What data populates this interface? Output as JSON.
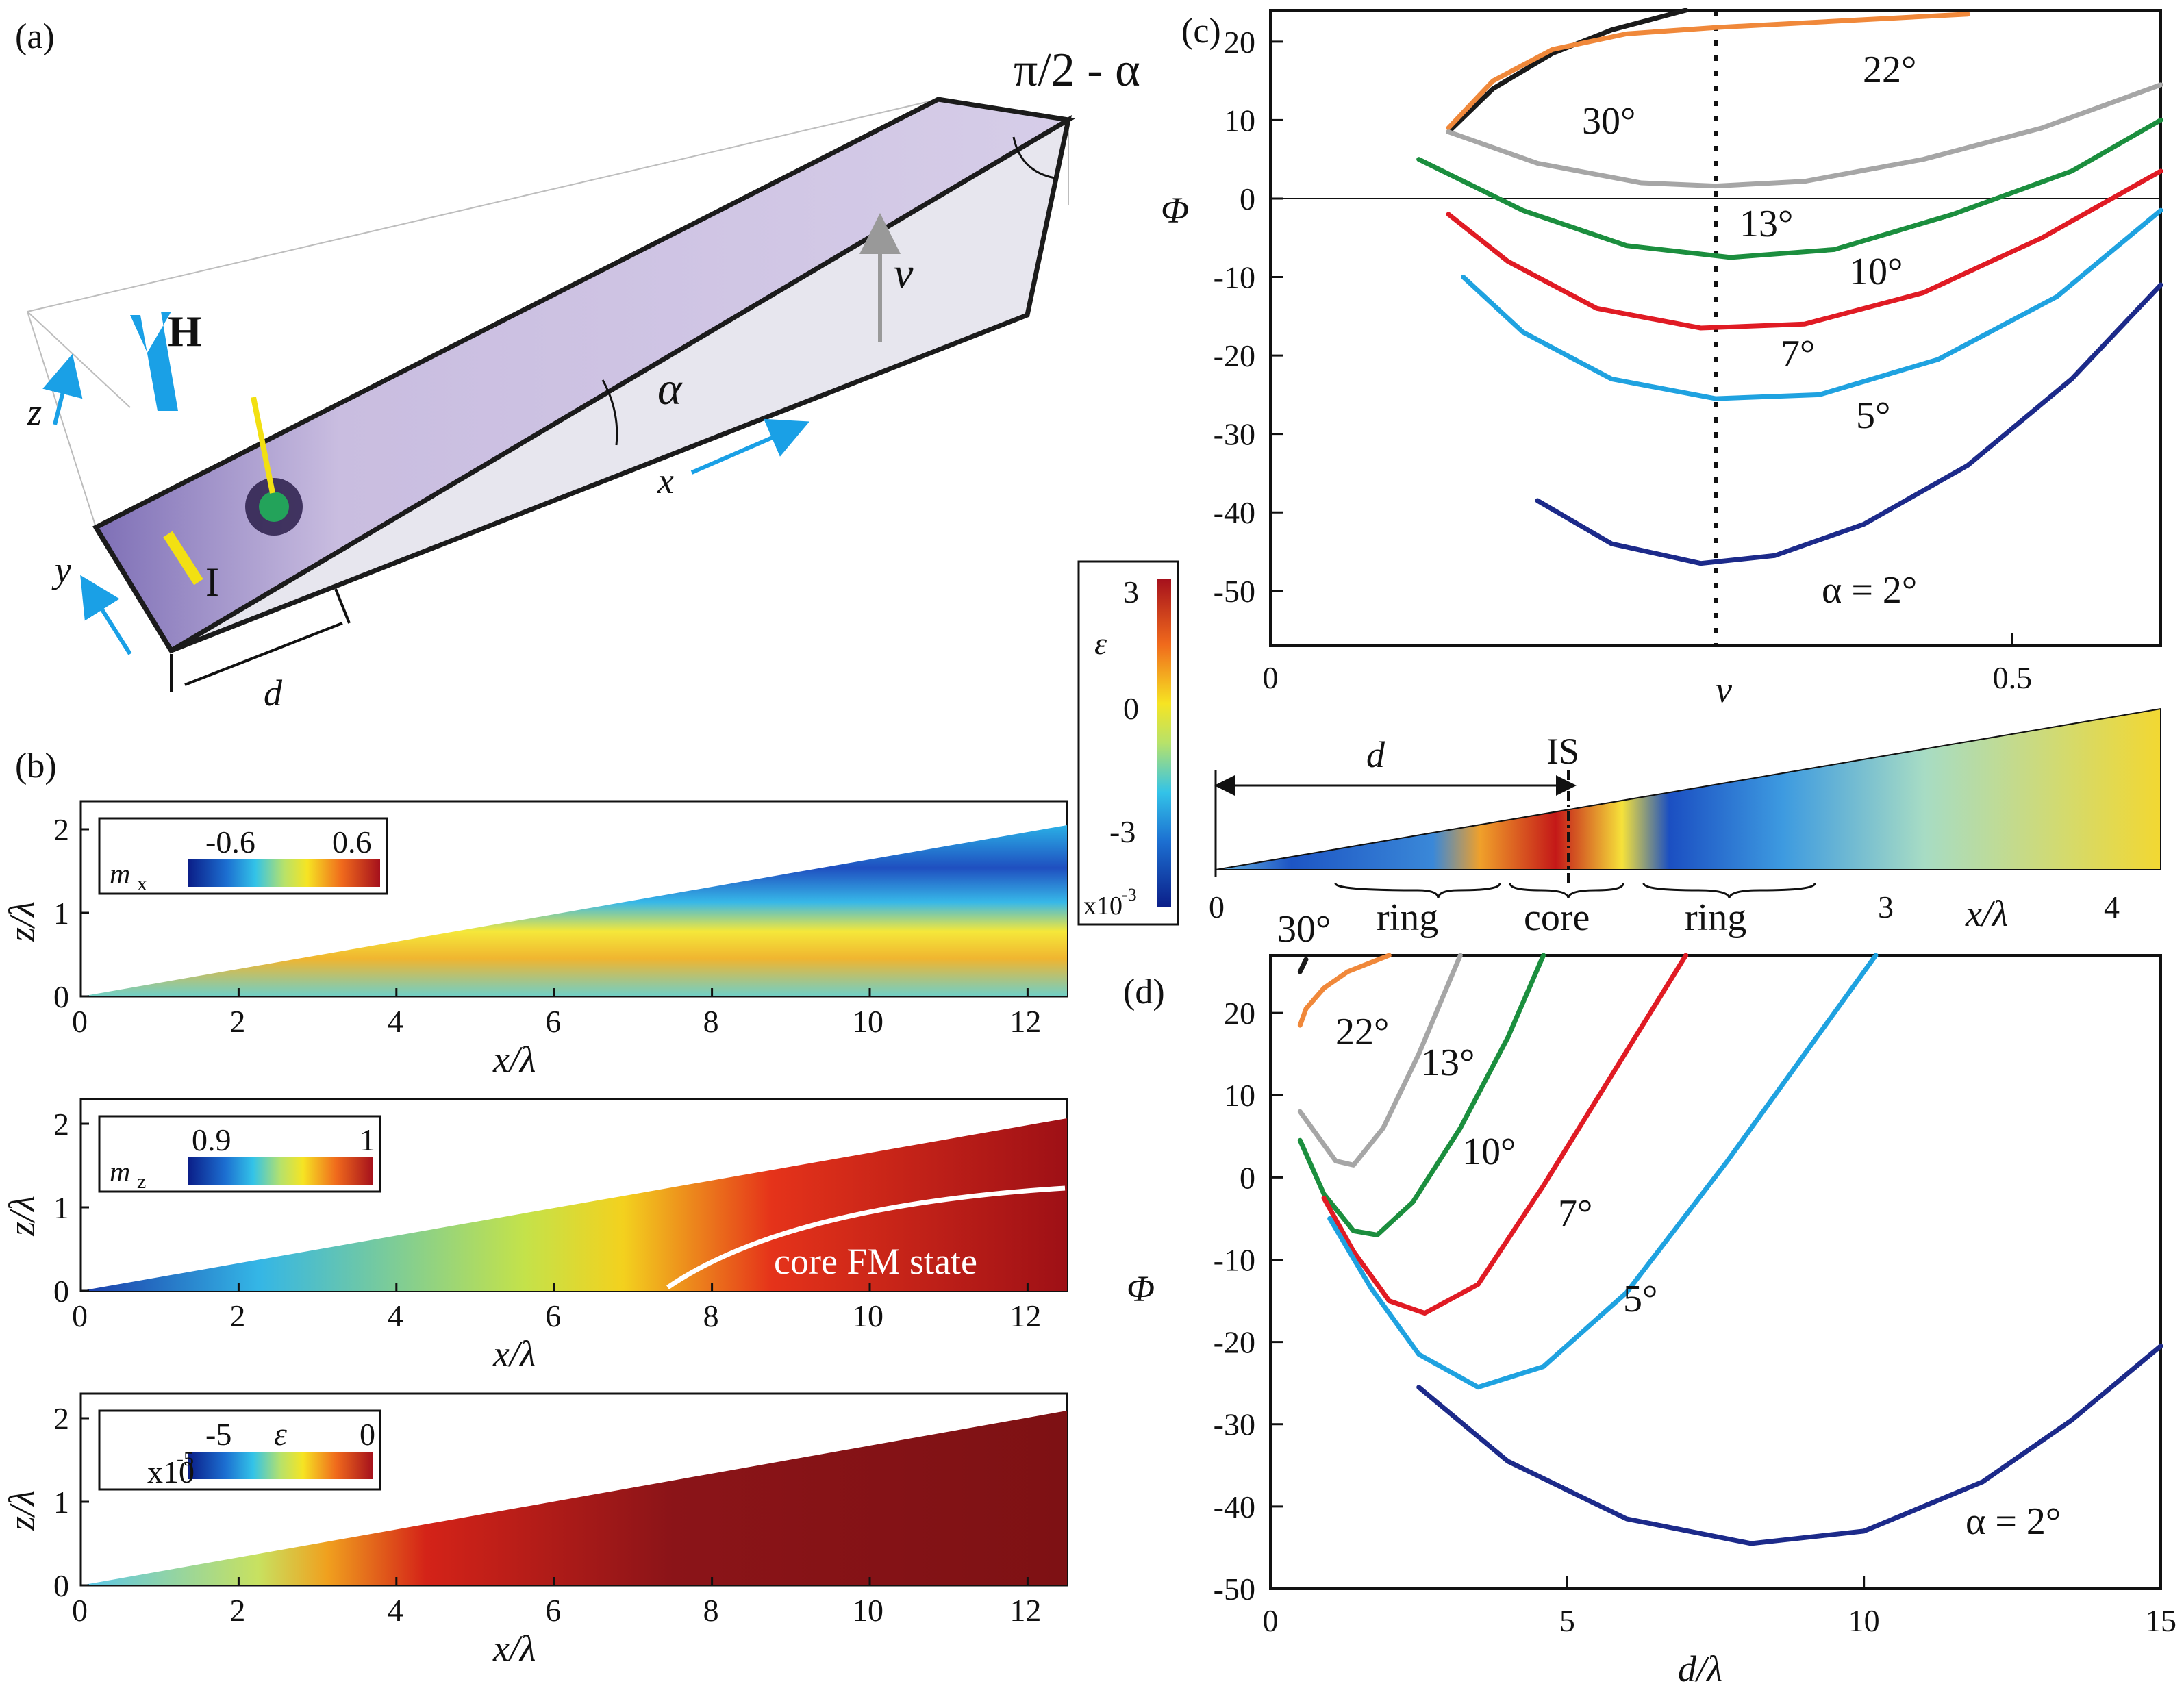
{
  "panels": {
    "a": {
      "label": "(a)",
      "angle_top": "π/2 - α",
      "H": "H",
      "I": "I",
      "nu": "ν",
      "alpha": "α",
      "x": "x",
      "y": "y",
      "z": "z",
      "d": "d"
    },
    "b": {
      "label": "(b)",
      "ylabel": "z/λ",
      "xlabel": "x/λ",
      "xticks": [
        "0",
        "2",
        "4",
        "6",
        "8",
        "10",
        "12"
      ],
      "yticks": [
        "0",
        "1",
        "2"
      ],
      "plots": [
        {
          "cb_label": "m",
          "cb_sub": "x",
          "cb_min": "-0.6",
          "cb_max": "0.6"
        },
        {
          "cb_label": "m",
          "cb_sub": "z",
          "cb_min": "0.9",
          "cb_max": "1",
          "annotation": "core FM state"
        },
        {
          "cb_label": "ε",
          "cb_min": "-5",
          "cb_max": "0",
          "cb_scale": "x10",
          "cb_exp": "-5"
        }
      ]
    },
    "mid": {
      "cb_label": "ε",
      "cb_max": "3",
      "cb_mid": "0",
      "cb_min": "-3",
      "cb_scale": "x10",
      "cb_exp": "-3",
      "d_label": "d",
      "IS_label": "IS",
      "ring_left": "ring",
      "core": "core",
      "ring_right": "ring",
      "xticks": [
        "0",
        "3",
        "4"
      ],
      "xlabel": "x/λ"
    },
    "c": {
      "label": "(c)",
      "xlabel": "ν"
    },
    "d": {
      "label": "(d)",
      "xlabel": "d/λ"
    }
  },
  "colors": {
    "c30": "#1a1a1a",
    "c22": "#f0883a",
    "c13": "#a6a6a6",
    "c10": "#1b8e3e",
    "c7": "#e01b24",
    "c5": "#1fa2e0",
    "c2": "#1c2a8a"
  },
  "chart_data": [
    {
      "type": "line",
      "panel": "c",
      "ylabel": "Φ",
      "xlabel": "ν",
      "xlim": [
        0,
        0.6
      ],
      "ylim": [
        -57,
        24
      ],
      "xticks": [
        0,
        0.5
      ],
      "xtick_labels": [
        "0",
        "0.5"
      ],
      "yticks": [
        -50,
        -40,
        -30,
        -20,
        -10,
        0,
        10,
        20
      ],
      "ytick_labels": [
        "-50",
        "-40",
        "-30",
        "-20",
        "-10",
        "0",
        "10",
        "20"
      ],
      "vline_at": 0.3,
      "vline_label": "ν",
      "series": [
        {
          "name": "30°",
          "color_key": "c30",
          "label": "30°",
          "x": [
            0.12,
            0.15,
            0.19,
            0.23,
            0.28
          ],
          "y": [
            8.5,
            14,
            18.5,
            21.5,
            24
          ]
        },
        {
          "name": "22°",
          "color_key": "c22",
          "label": "22°",
          "x": [
            0.12,
            0.15,
            0.19,
            0.24,
            0.3,
            0.36,
            0.42,
            0.47
          ],
          "y": [
            9,
            15,
            19,
            21,
            21.8,
            22.4,
            23,
            23.5
          ]
        },
        {
          "name": "13°",
          "color_key": "c13",
          "label": "13°",
          "x": [
            0.12,
            0.18,
            0.25,
            0.3,
            0.36,
            0.44,
            0.52,
            0.6
          ],
          "y": [
            8.5,
            4.5,
            2,
            1.6,
            2.2,
            5,
            9,
            14.5
          ]
        },
        {
          "name": "10°",
          "color_key": "c10",
          "label": "10°",
          "x": [
            0.1,
            0.17,
            0.24,
            0.31,
            0.38,
            0.46,
            0.54,
            0.6
          ],
          "y": [
            5,
            -1.5,
            -6,
            -7.5,
            -6.5,
            -2,
            3.5,
            10
          ]
        },
        {
          "name": "7°",
          "color_key": "c7",
          "label": "7°",
          "x": [
            0.12,
            0.16,
            0.22,
            0.29,
            0.36,
            0.44,
            0.52,
            0.6
          ],
          "y": [
            -2,
            -8,
            -14,
            -16.5,
            -16,
            -12,
            -5,
            3.5
          ]
        },
        {
          "name": "5°",
          "color_key": "c5",
          "label": "5°",
          "x": [
            0.13,
            0.17,
            0.23,
            0.3,
            0.37,
            0.45,
            0.53,
            0.6
          ],
          "y": [
            -10,
            -17,
            -23,
            -25.5,
            -25,
            -20.5,
            -12.5,
            -1.5
          ]
        },
        {
          "name": "α = 2°",
          "color_key": "c2",
          "label": "α = 2°",
          "x": [
            0.18,
            0.23,
            0.29,
            0.34,
            0.4,
            0.47,
            0.54,
            0.6
          ],
          "y": [
            -38.5,
            -44,
            -46.5,
            -45.5,
            -41.5,
            -34,
            -23,
            -11
          ]
        }
      ]
    },
    {
      "type": "line",
      "panel": "d",
      "ylabel": "Φ",
      "xlabel": "d/λ",
      "xlim": [
        0,
        15
      ],
      "ylim": [
        -50,
        27
      ],
      "xticks": [
        0,
        5,
        10,
        15
      ],
      "xtick_labels": [
        "0",
        "5",
        "10",
        "15"
      ],
      "yticks": [
        -50,
        -40,
        -30,
        -20,
        -10,
        0,
        10,
        20
      ],
      "ytick_labels": [
        "-50",
        "-40",
        "-30",
        "-20",
        "-10",
        "0",
        "10",
        "20"
      ],
      "series": [
        {
          "name": "30°",
          "color_key": "c30",
          "label": "30°",
          "x": [
            0.5,
            0.6
          ],
          "y": [
            25,
            26.5
          ]
        },
        {
          "name": "22°",
          "color_key": "c22",
          "label": "22°",
          "x": [
            0.5,
            0.6,
            0.9,
            1.3,
            2.0
          ],
          "y": [
            18.5,
            20.5,
            23,
            25,
            27
          ]
        },
        {
          "name": "13°",
          "color_key": "c13",
          "label": "13°",
          "x": [
            0.5,
            0.8,
            1.1,
            1.4,
            1.9,
            2.5,
            3.2
          ],
          "y": [
            8,
            5,
            2,
            1.5,
            6,
            15,
            27
          ]
        },
        {
          "name": "10°",
          "color_key": "c10",
          "label": "10°",
          "x": [
            0.5,
            0.9,
            1.4,
            1.8,
            2.4,
            3.2,
            4.0,
            4.6
          ],
          "y": [
            4.5,
            -2,
            -6.5,
            -7,
            -3,
            6,
            17,
            27
          ]
        },
        {
          "name": "7°",
          "color_key": "c7",
          "label": "7°",
          "x": [
            0.9,
            1.4,
            2.0,
            2.6,
            3.5,
            4.6,
            5.8,
            7.0
          ],
          "y": [
            -2.5,
            -9,
            -15,
            -16.5,
            -13,
            -1,
            13,
            27
          ]
        },
        {
          "name": "5°",
          "color_key": "c5",
          "label": "5°",
          "x": [
            1.0,
            1.7,
            2.5,
            3.5,
            4.6,
            6.0,
            7.7,
            10.2
          ],
          "y": [
            -5,
            -13.5,
            -21.5,
            -25.5,
            -23,
            -14,
            2,
            27
          ]
        },
        {
          "name": "α = 2°",
          "color_key": "c2",
          "label": "α = 2°",
          "x": [
            2.5,
            4.0,
            6.0,
            8.1,
            10.0,
            12.0,
            13.5,
            15.0
          ],
          "y": [
            -25.5,
            -34.5,
            -41.5,
            -44.5,
            -43,
            -37,
            -29.5,
            -20.5
          ]
        }
      ]
    }
  ]
}
